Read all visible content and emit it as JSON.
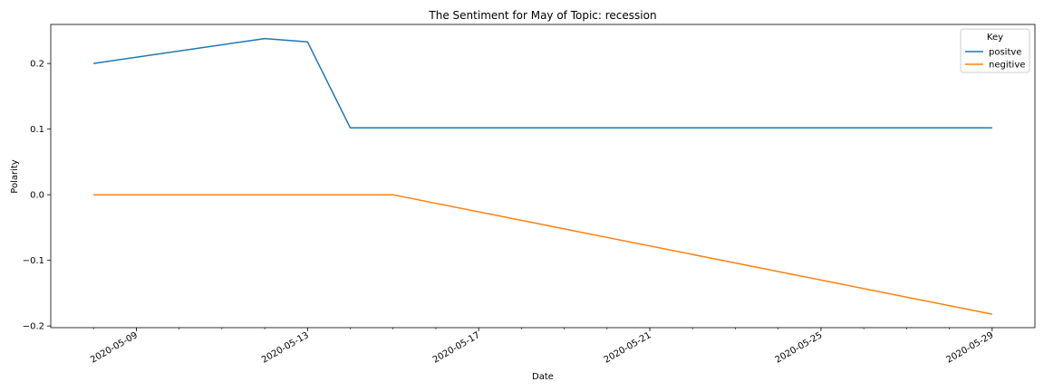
{
  "chart_data": {
    "type": "line",
    "title": "The Sentiment for May of Topic: recession",
    "xlabel": "Date",
    "ylabel": "Polarity",
    "x_type": "date",
    "xlim": [
      "2020-05-07",
      "2020-05-30"
    ],
    "ylim": [
      -0.2025,
      0.2595
    ],
    "x_ticks": [
      "2020-05-09",
      "2020-05-13",
      "2020-05-17",
      "2020-05-21",
      "2020-05-25",
      "2020-05-29"
    ],
    "y_ticks": [
      0.2,
      0.1,
      0.0,
      -0.1,
      -0.2
    ],
    "y_tick_labels": [
      "0.2",
      "0.1",
      "0.0",
      "−0.1",
      "−0.2"
    ],
    "grid": false,
    "legend": {
      "title": "Key",
      "position": "top-right"
    },
    "series": [
      {
        "name": "positve",
        "color": "#1f77b4",
        "points": [
          {
            "x": "2020-05-08",
            "y": 0.2
          },
          {
            "x": "2020-05-12",
            "y": 0.238
          },
          {
            "x": "2020-05-13",
            "y": 0.233
          },
          {
            "x": "2020-05-14",
            "y": 0.102
          },
          {
            "x": "2020-05-29",
            "y": 0.102
          }
        ]
      },
      {
        "name": "negitive",
        "color": "#ff7f0e",
        "points": [
          {
            "x": "2020-05-08",
            "y": 0.0
          },
          {
            "x": "2020-05-15",
            "y": 0.0
          },
          {
            "x": "2020-05-29",
            "y": -0.182
          }
        ]
      }
    ]
  }
}
